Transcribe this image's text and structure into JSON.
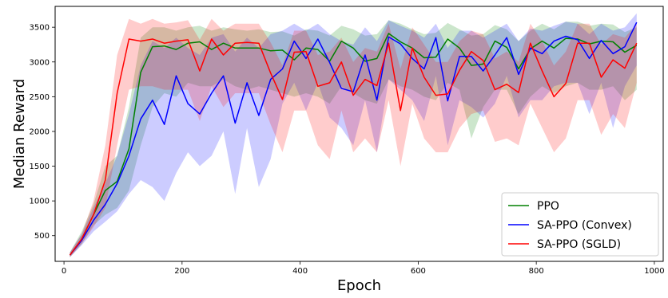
{
  "chart_data": {
    "type": "line",
    "title": "",
    "xlabel": "Epoch",
    "ylabel": "Median Reward",
    "xlim": [
      -15,
      1015
    ],
    "ylim": [
      130,
      3800
    ],
    "xticks": [
      0,
      200,
      400,
      600,
      800,
      1000
    ],
    "yticks": [
      500,
      1000,
      1500,
      2000,
      2500,
      3000,
      3500
    ],
    "grid": false,
    "legend_position": "lower right",
    "x": [
      10,
      30,
      50,
      70,
      90,
      110,
      130,
      150,
      170,
      190,
      210,
      230,
      250,
      270,
      290,
      310,
      330,
      350,
      370,
      390,
      410,
      430,
      450,
      470,
      490,
      510,
      530,
      550,
      570,
      590,
      610,
      630,
      650,
      670,
      690,
      710,
      730,
      750,
      770,
      790,
      810,
      830,
      850,
      870,
      890,
      910,
      930,
      950,
      970
    ],
    "series": [
      {
        "name": "PPO",
        "color": "#008000",
        "values": [
          220,
          450,
          800,
          1150,
          1280,
          1750,
          2850,
          3220,
          3230,
          3180,
          3270,
          3290,
          3180,
          3270,
          3200,
          3200,
          3200,
          3160,
          3170,
          3030,
          3200,
          3180,
          3010,
          3300,
          3200,
          3010,
          3050,
          3410,
          3290,
          3200,
          3060,
          3070,
          3330,
          3200,
          2950,
          2970,
          3300,
          3210,
          2900,
          3190,
          3300,
          3200,
          3340,
          3330,
          3260,
          3300,
          3290,
          3140,
          3240
        ],
        "lower": [
          190,
          380,
          650,
          800,
          900,
          1150,
          1800,
          2350,
          2550,
          2500,
          2700,
          2650,
          2650,
          2750,
          2650,
          2600,
          2650,
          2600,
          2550,
          2500,
          2550,
          2500,
          2400,
          2650,
          2550,
          2450,
          2400,
          2750,
          2650,
          2600,
          2500,
          2450,
          2700,
          2600,
          1900,
          2350,
          2600,
          2600,
          2250,
          2500,
          2650,
          2550,
          2650,
          2700,
          2600,
          2600,
          2650,
          2450,
          2600
        ],
        "upper": [
          260,
          560,
          950,
          1500,
          1650,
          2350,
          3350,
          3500,
          3500,
          3450,
          3500,
          3520,
          3450,
          3500,
          3470,
          3450,
          3470,
          3430,
          3440,
          3380,
          3470,
          3450,
          3380,
          3520,
          3470,
          3380,
          3400,
          3600,
          3550,
          3470,
          3400,
          3420,
          3560,
          3470,
          3380,
          3400,
          3530,
          3470,
          3300,
          3450,
          3550,
          3470,
          3580,
          3580,
          3520,
          3550,
          3540,
          3430,
          3500
        ]
      },
      {
        "name": "SA-PPO (Convex)",
        "color": "#0000ff",
        "values": [
          220,
          430,
          720,
          950,
          1250,
          1650,
          2180,
          2450,
          2100,
          2800,
          2400,
          2250,
          2550,
          2800,
          2120,
          2700,
          2230,
          2750,
          2900,
          3300,
          3050,
          3330,
          2990,
          2620,
          2570,
          3100,
          2450,
          3360,
          3260,
          3050,
          2900,
          3350,
          2440,
          3080,
          3080,
          2870,
          3100,
          3350,
          2820,
          3200,
          3120,
          3300,
          3370,
          3320,
          3050,
          3310,
          3120,
          3220,
          3570
        ],
        "lower": [
          190,
          360,
          560,
          700,
          850,
          1100,
          1300,
          1200,
          1000,
          1400,
          1700,
          1500,
          1650,
          2000,
          1100,
          2050,
          1200,
          1600,
          2400,
          2700,
          2300,
          2700,
          2200,
          2050,
          1800,
          2450,
          1700,
          2750,
          2600,
          2450,
          2150,
          2800,
          1800,
          2450,
          2350,
          2200,
          2400,
          2800,
          2200,
          2450,
          2450,
          2650,
          2700,
          2700,
          2250,
          2700,
          2050,
          2650,
          2950
        ],
        "upper": [
          260,
          520,
          900,
          1250,
          1650,
          2250,
          2950,
          3300,
          3200,
          3350,
          3200,
          3100,
          3350,
          3400,
          3150,
          3350,
          3200,
          3400,
          3450,
          3550,
          3450,
          3550,
          3400,
          3300,
          3250,
          3500,
          3300,
          3600,
          3520,
          3450,
          3350,
          3550,
          3200,
          3450,
          3450,
          3350,
          3450,
          3550,
          3300,
          3480,
          3450,
          3520,
          3580,
          3550,
          3400,
          3550,
          3450,
          3500,
          3700
        ]
      },
      {
        "name": "SA-PPO (SGLD)",
        "color": "#ff0000",
        "values": [
          220,
          450,
          800,
          1300,
          2550,
          3330,
          3300,
          3330,
          3270,
          3300,
          3320,
          2870,
          3330,
          3100,
          3270,
          3280,
          3270,
          2840,
          2460,
          3140,
          3150,
          2650,
          2700,
          3000,
          2520,
          2750,
          2660,
          3270,
          2300,
          3200,
          2780,
          2520,
          2540,
          2880,
          3150,
          3020,
          2600,
          2680,
          2560,
          3270,
          2870,
          2500,
          2690,
          3270,
          3270,
          2780,
          3030,
          2910,
          3270
        ],
        "lower": [
          190,
          380,
          620,
          900,
          1800,
          2600,
          2650,
          2650,
          2600,
          2600,
          2600,
          2150,
          2650,
          2350,
          2550,
          2550,
          2550,
          2100,
          1700,
          2300,
          2300,
          1800,
          1600,
          2300,
          1700,
          1900,
          1700,
          2450,
          1500,
          2400,
          1900,
          1700,
          1700,
          2050,
          2250,
          2300,
          1850,
          1900,
          1800,
          2400,
          2050,
          1700,
          1900,
          2450,
          2450,
          1950,
          2250,
          2050,
          2700
        ],
        "upper": [
          260,
          520,
          1000,
          1800,
          3100,
          3620,
          3550,
          3620,
          3550,
          3570,
          3600,
          3320,
          3620,
          3450,
          3550,
          3550,
          3550,
          3280,
          2950,
          3450,
          3450,
          3100,
          3150,
          3350,
          3000,
          3200,
          3150,
          3550,
          2900,
          3500,
          3250,
          3000,
          3000,
          3300,
          3450,
          3400,
          3050,
          3150,
          3000,
          3550,
          3300,
          2950,
          3150,
          3550,
          3550,
          3250,
          3400,
          3350,
          3550
        ]
      }
    ]
  }
}
